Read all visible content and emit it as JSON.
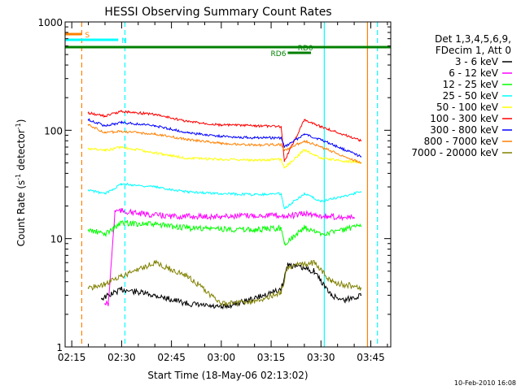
{
  "chart_data": {
    "type": "line",
    "title": "HESSI Observing Summary Count Rates",
    "xlabel": "Start Time (18-May-06 02:13:02)",
    "ylabel_main": "Count Rate (s",
    "ylabel_sup1": "-1",
    "ylabel_mid": " detector",
    "ylabel_sup2": "-1",
    "ylabel_end": ")",
    "yscale": "log",
    "xlim": [
      "02:13",
      "03:51"
    ],
    "ylim": [
      1,
      1000
    ],
    "xticks": [
      "02:15",
      "02:30",
      "02:45",
      "03:00",
      "03:15",
      "03:30",
      "03:45"
    ],
    "yticks": [
      {
        "value": 1,
        "label": "1"
      },
      {
        "value": 10,
        "label": "10"
      },
      {
        "value": 100,
        "label": "100"
      },
      {
        "value": 1000,
        "label": "1000"
      }
    ],
    "timestamp": "10-Feb-2010 16:08",
    "legend_header": [
      "Det 1,3,4,5,6,9,",
      "FDecim 1, Att 0"
    ],
    "flags": [
      {
        "label": "S",
        "color": "#ff8000",
        "start": "02:13",
        "end": "02:18"
      },
      {
        "label": "N",
        "color": "#00ffff",
        "start": "02:13",
        "end": "02:29"
      },
      {
        "label": "RD0",
        "color": "#008000",
        "start": "02:13",
        "end": "03:51"
      },
      {
        "label": "RD6",
        "color": "#008000",
        "start": "03:20",
        "end": "03:27"
      }
    ],
    "vlines": [
      {
        "time": "02:18",
        "color": "#ff8000",
        "style": "dashed"
      },
      {
        "time": "02:31",
        "color": "#00ffff",
        "style": "dashed"
      },
      {
        "time": "03:31",
        "color": "#00ffff",
        "style": "solid"
      },
      {
        "time": "03:44",
        "color": "#ff8000",
        "style": "solid"
      },
      {
        "time": "03:47",
        "color": "#00ffff",
        "style": "dashed"
      }
    ],
    "series": [
      {
        "name": "3 - 6 keV",
        "color": "#000000",
        "x": [
          "02:24",
          "02:30",
          "02:40",
          "02:50",
          "03:00",
          "03:10",
          "03:18",
          "03:20",
          "03:28",
          "03:33",
          "03:37",
          "03:42"
        ],
        "values": [
          2.8,
          3.4,
          3.0,
          2.5,
          2.3,
          2.8,
          3.4,
          5.8,
          5.0,
          3.0,
          2.7,
          3.0
        ]
      },
      {
        "name": "6 - 12 keV",
        "color": "#ff00ff",
        "x": [
          "02:25",
          "02:26",
          "02:28",
          "02:30",
          "02:35",
          "02:45",
          "03:00",
          "03:15",
          "03:20",
          "03:25",
          "03:32",
          "03:40"
        ],
        "values": [
          2.5,
          2.5,
          18,
          18,
          17,
          16,
          16,
          16.5,
          16,
          17,
          16,
          15.5
        ]
      },
      {
        "name": "12 - 25 keV",
        "color": "#00ff00",
        "x": [
          "02:20",
          "02:25",
          "02:30",
          "02:40",
          "02:50",
          "03:00",
          "03:10",
          "03:18",
          "03:19",
          "03:25",
          "03:30",
          "03:42"
        ],
        "values": [
          12,
          11,
          14,
          13.5,
          12.5,
          12.3,
          12,
          12.5,
          9,
          12.5,
          11,
          13
        ]
      },
      {
        "name": "25 - 50 keV",
        "color": "#00ffff",
        "x": [
          "02:20",
          "02:25",
          "02:30",
          "02:40",
          "02:50",
          "03:00",
          "03:10",
          "03:18",
          "03:19",
          "03:25",
          "03:30",
          "03:42"
        ],
        "values": [
          28,
          26,
          32,
          30,
          27,
          26,
          25.5,
          26,
          19,
          26,
          22,
          27
        ]
      },
      {
        "name": "50 - 100 keV",
        "color": "#ffff00",
        "x": [
          "02:20",
          "02:25",
          "02:30",
          "02:40",
          "02:50",
          "03:00",
          "03:10",
          "03:18",
          "03:19",
          "03:25",
          "03:30",
          "03:42"
        ],
        "values": [
          68,
          65,
          70,
          62,
          55,
          54,
          53,
          54,
          45,
          66,
          55,
          50
        ]
      },
      {
        "name": "100 - 300 keV",
        "color": "#ff0000",
        "x": [
          "02:20",
          "02:25",
          "02:30",
          "02:40",
          "02:50",
          "03:00",
          "03:10",
          "03:18",
          "03:19",
          "03:25",
          "03:30",
          "03:42"
        ],
        "values": [
          145,
          135,
          150,
          140,
          120,
          112,
          110,
          108,
          52,
          125,
          108,
          80
        ]
      },
      {
        "name": "300 - 800 keV",
        "color": "#0000ff",
        "x": [
          "02:20",
          "02:25",
          "02:30",
          "02:40",
          "02:50",
          "03:00",
          "03:10",
          "03:18",
          "03:19",
          "03:25",
          "03:30",
          "03:42"
        ],
        "values": [
          125,
          110,
          118,
          110,
          95,
          88,
          85,
          85,
          70,
          92,
          82,
          57
        ]
      },
      {
        "name": "800 - 7000 keV",
        "color": "#ff8000",
        "x": [
          "02:20",
          "02:25",
          "02:30",
          "02:40",
          "02:50",
          "03:00",
          "03:10",
          "03:18",
          "03:19",
          "03:25",
          "03:30",
          "03:42"
        ],
        "values": [
          112,
          95,
          98,
          92,
          82,
          76,
          73,
          74,
          65,
          80,
          70,
          50
        ]
      },
      {
        "name": "7000 - 20000 keV",
        "color": "#808000",
        "x": [
          "02:20",
          "02:25",
          "02:30",
          "02:40",
          "02:50",
          "03:00",
          "03:10",
          "03:18",
          "03:20",
          "03:28",
          "03:33",
          "03:42"
        ],
        "values": [
          3.5,
          3.8,
          4.5,
          6.0,
          4.5,
          2.5,
          2.6,
          3.2,
          5.5,
          6.0,
          4.0,
          3.5
        ]
      }
    ]
  }
}
